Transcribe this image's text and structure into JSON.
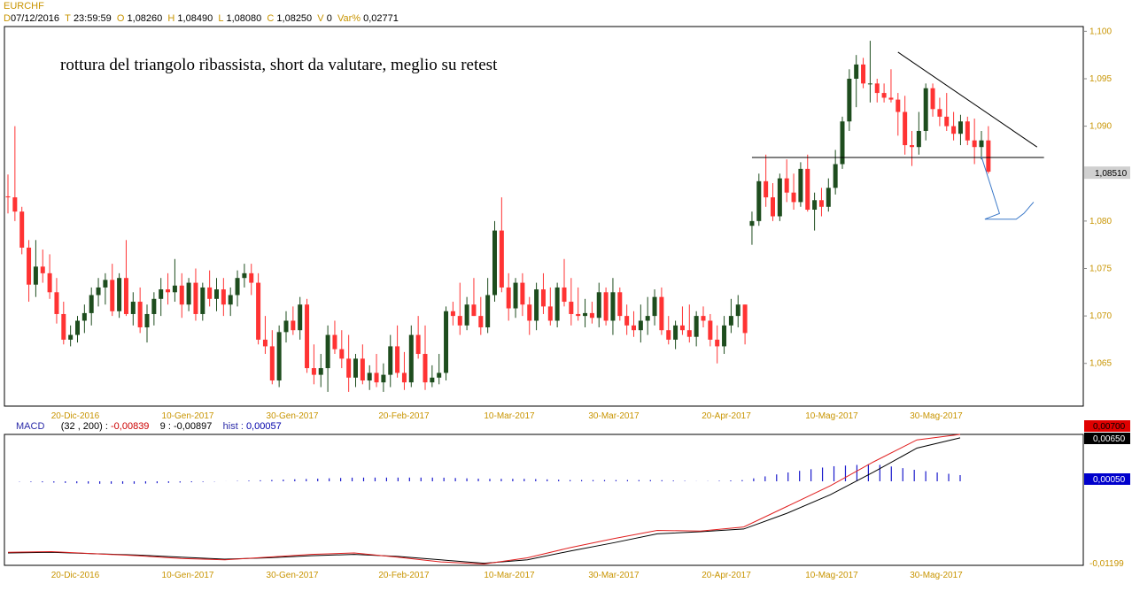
{
  "header": {
    "symbol": "EURCHF",
    "date_key": "D",
    "date_val": "07/12/2016",
    "time_key": "T",
    "time_val": "23:59:59",
    "open_key": "O",
    "open_val": "1,08260",
    "high_key": "H",
    "high_val": "1,08490",
    "low_key": "L",
    "low_val": "1,08080",
    "close_key": "C",
    "close_val": "1,08250",
    "volume_key": "V",
    "volume_val": "0",
    "var_key": "Var%",
    "var_val": "0,02771"
  },
  "annotation": "rottura del triangolo ribassista, short da valutare, meglio su retest",
  "macd_header": {
    "label": "MACD",
    "params": "(32 , 200) :",
    "macd_val": "-0,00839",
    "signal_label": "9 :",
    "signal_val": "-0,00897",
    "hist_label": "hist :",
    "hist_val": "0,00057"
  },
  "colors": {
    "up": "#1e4d1e",
    "down": "#ff3333",
    "axis_text": "#c89400",
    "macd_line": "#e02020",
    "signal_line": "#000000",
    "hist": "#1a1acc",
    "arrow": "#3a78c8"
  },
  "chart_data": [
    {
      "type": "candlestick",
      "title": "EURCHF",
      "x_labels": [
        "20-Dic-2016",
        "10-Gen-2017",
        "30-Gen-2017",
        "20-Feb-2017",
        "10-Mar-2017",
        "30-Mar-2017",
        "20-Apr-2017",
        "10-Mag-2017",
        "30-Mag-2017"
      ],
      "y_ticks": [
        "1,100",
        "1,095",
        "1,090",
        "1,085",
        "1,080",
        "1,075",
        "1,070",
        "1,065"
      ],
      "ylim": [
        1.0605,
        1.1005
      ],
      "last_price_label": "1,08510",
      "last_price": 1.0851,
      "ohlc": [
        [
          1.0826,
          1.0849,
          1.0808,
          1.0825
        ],
        [
          1.0825,
          1.09,
          1.08,
          1.081
        ],
        [
          1.081,
          1.0815,
          1.0765,
          1.0772
        ],
        [
          1.0772,
          1.078,
          1.0715,
          1.0733
        ],
        [
          1.0733,
          1.078,
          1.072,
          1.0752
        ],
        [
          1.0752,
          1.077,
          1.0735,
          1.0745
        ],
        [
          1.0745,
          1.0765,
          1.0718,
          1.0725
        ],
        [
          1.0725,
          1.074,
          1.0692,
          1.0702
        ],
        [
          1.0702,
          1.0715,
          1.067,
          1.0675
        ],
        [
          1.0675,
          1.069,
          1.0668,
          1.068
        ],
        [
          1.068,
          1.07,
          1.0672,
          1.0695
        ],
        [
          1.0695,
          1.0712,
          1.0682,
          1.0703
        ],
        [
          1.0703,
          1.073,
          1.069,
          1.0722
        ],
        [
          1.0722,
          1.074,
          1.071,
          1.073
        ],
        [
          1.073,
          1.0745,
          1.0712,
          1.0738
        ],
        [
          1.0738,
          1.0755,
          1.07,
          1.0705
        ],
        [
          1.0705,
          1.0745,
          1.0698,
          1.074
        ],
        [
          1.074,
          1.078,
          1.07,
          1.0702
        ],
        [
          1.0702,
          1.0725,
          1.069,
          1.0715
        ],
        [
          1.0715,
          1.073,
          1.0682,
          1.0688
        ],
        [
          1.0688,
          1.0712,
          1.0672,
          1.0702
        ],
        [
          1.0702,
          1.0725,
          1.069,
          1.0718
        ],
        [
          1.0718,
          1.074,
          1.07,
          1.0728
        ],
        [
          1.0728,
          1.0745,
          1.0712,
          1.0725
        ],
        [
          1.0725,
          1.076,
          1.0715,
          1.0732
        ],
        [
          1.0732,
          1.0745,
          1.0698,
          1.0712
        ],
        [
          1.0712,
          1.074,
          1.0705,
          1.0735
        ],
        [
          1.0735,
          1.075,
          1.0695,
          1.0702
        ],
        [
          1.0702,
          1.0735,
          1.0695,
          1.073
        ],
        [
          1.073,
          1.0748,
          1.071,
          1.0718
        ],
        [
          1.0718,
          1.074,
          1.0705,
          1.0728
        ],
        [
          1.0728,
          1.074,
          1.07,
          1.0712
        ],
        [
          1.0712,
          1.073,
          1.07,
          1.0722
        ],
        [
          1.0722,
          1.0748,
          1.071,
          1.074
        ],
        [
          1.074,
          1.0755,
          1.073,
          1.0745
        ],
        [
          1.0745,
          1.0755,
          1.0722,
          1.0735
        ],
        [
          1.0735,
          1.0745,
          1.067,
          1.0675
        ],
        [
          1.0675,
          1.07,
          1.066,
          1.0668
        ],
        [
          1.0668,
          1.0685,
          1.0628,
          1.0632
        ],
        [
          1.0632,
          1.069,
          1.0625,
          1.0683
        ],
        [
          1.0683,
          1.0705,
          1.0672,
          1.0695
        ],
        [
          1.0695,
          1.071,
          1.068,
          1.0685
        ],
        [
          1.0685,
          1.072,
          1.0675,
          1.0712
        ],
        [
          1.0712,
          1.0718,
          1.064,
          1.0645
        ],
        [
          1.0645,
          1.067,
          1.0628,
          1.0638
        ],
        [
          1.0638,
          1.066,
          1.0625,
          1.0645
        ],
        [
          1.0645,
          1.069,
          1.062,
          1.068
        ],
        [
          1.068,
          1.0695,
          1.066,
          1.0665
        ],
        [
          1.0665,
          1.0685,
          1.0645,
          1.0655
        ],
        [
          1.0655,
          1.068,
          1.062,
          1.0635
        ],
        [
          1.0635,
          1.066,
          1.0625,
          1.0655
        ],
        [
          1.0655,
          1.067,
          1.0628,
          1.0632
        ],
        [
          1.0632,
          1.0648,
          1.0622,
          1.064
        ],
        [
          1.064,
          1.066,
          1.0625,
          1.063
        ],
        [
          1.063,
          1.065,
          1.062,
          1.0638
        ],
        [
          1.0638,
          1.068,
          1.0625,
          1.0668
        ],
        [
          1.0668,
          1.069,
          1.0635,
          1.064
        ],
        [
          1.064,
          1.0662,
          1.0622,
          1.063
        ],
        [
          1.063,
          1.069,
          1.0625,
          1.068
        ],
        [
          1.068,
          1.07,
          1.0655,
          1.066
        ],
        [
          1.066,
          1.069,
          1.0622,
          1.063
        ],
        [
          1.063,
          1.0648,
          1.0625,
          1.0635
        ],
        [
          1.0635,
          1.066,
          1.0628,
          1.064
        ],
        [
          1.064,
          1.071,
          1.0632,
          1.0705
        ],
        [
          1.0705,
          1.0715,
          1.069,
          1.07
        ],
        [
          1.07,
          1.0735,
          1.068,
          1.069
        ],
        [
          1.069,
          1.072,
          1.0685,
          1.0712
        ],
        [
          1.0712,
          1.074,
          1.07,
          1.07
        ],
        [
          1.07,
          1.072,
          1.068,
          1.0688
        ],
        [
          1.0688,
          1.074,
          1.0682,
          1.0722
        ],
        [
          1.0722,
          1.08,
          1.0715,
          1.079
        ],
        [
          1.079,
          1.0825,
          1.0725,
          1.073
        ],
        [
          1.073,
          1.0745,
          1.0695,
          1.0708
        ],
        [
          1.0708,
          1.074,
          1.0698,
          1.0735
        ],
        [
          1.0735,
          1.0745,
          1.07,
          1.0712
        ],
        [
          1.0712,
          1.072,
          1.068,
          1.0695
        ],
        [
          1.0695,
          1.0735,
          1.0685,
          1.0728
        ],
        [
          1.0728,
          1.0745,
          1.0702,
          1.071
        ],
        [
          1.071,
          1.073,
          1.069,
          1.0695
        ],
        [
          1.0695,
          1.0735,
          1.0688,
          1.073
        ],
        [
          1.073,
          1.076,
          1.071,
          1.0715
        ],
        [
          1.0715,
          1.074,
          1.069,
          1.0702
        ],
        [
          1.0702,
          1.073,
          1.0695,
          1.07
        ],
        [
          1.07,
          1.0718,
          1.0688,
          1.0703
        ],
        [
          1.0703,
          1.0715,
          1.0692,
          1.0698
        ],
        [
          1.0698,
          1.0735,
          1.0688,
          1.0725
        ],
        [
          1.0725,
          1.073,
          1.069,
          1.0695
        ],
        [
          1.0695,
          1.074,
          1.068,
          1.0725
        ],
        [
          1.0725,
          1.073,
          1.0695,
          1.07
        ],
        [
          1.07,
          1.0712,
          1.068,
          1.069
        ],
        [
          1.069,
          1.0705,
          1.0678,
          1.0685
        ],
        [
          1.0685,
          1.0712,
          1.0672,
          1.0695
        ],
        [
          1.0695,
          1.072,
          1.068,
          1.07
        ],
        [
          1.07,
          1.0728,
          1.069,
          1.072
        ],
        [
          1.072,
          1.073,
          1.068,
          1.0685
        ],
        [
          1.0685,
          1.07,
          1.067,
          1.0675
        ],
        [
          1.0675,
          1.0695,
          1.0665,
          1.069
        ],
        [
          1.069,
          1.071,
          1.068,
          1.0685
        ],
        [
          1.0685,
          1.0712,
          1.0672,
          1.0678
        ],
        [
          1.0678,
          1.0705,
          1.0668,
          1.07
        ],
        [
          1.07,
          1.071,
          1.0688,
          1.0695
        ],
        [
          1.0695,
          1.0702,
          1.0668,
          1.0675
        ],
        [
          1.0675,
          1.069,
          1.065,
          1.0668
        ],
        [
          1.0668,
          1.07,
          1.066,
          1.069
        ],
        [
          1.069,
          1.0718,
          1.0682,
          1.07
        ],
        [
          1.07,
          1.0722,
          1.0688,
          1.0712
        ],
        [
          1.0712,
          1.0712,
          1.067,
          1.0682
        ],
        [
          1.0795,
          1.081,
          1.0775,
          1.08
        ],
        [
          1.08,
          1.085,
          1.0795,
          1.0842
        ],
        [
          1.0842,
          1.087,
          1.0815,
          1.0825
        ],
        [
          1.0825,
          1.084,
          1.08,
          1.0805
        ],
        [
          1.0805,
          1.085,
          1.08,
          1.0845
        ],
        [
          1.0845,
          1.0865,
          1.082,
          1.083
        ],
        [
          1.083,
          1.085,
          1.0812,
          1.082
        ],
        [
          1.082,
          1.0862,
          1.0815,
          1.0855
        ],
        [
          1.0855,
          1.087,
          1.081,
          1.0812
        ],
        [
          1.0812,
          1.083,
          1.079,
          1.0822
        ],
        [
          1.0822,
          1.0835,
          1.0805,
          1.0815
        ],
        [
          1.0815,
          1.0845,
          1.081,
          1.0835
        ],
        [
          1.0835,
          1.0875,
          1.0828,
          1.086
        ],
        [
          1.086,
          1.091,
          1.0855,
          1.0905
        ],
        [
          1.0905,
          1.096,
          1.0895,
          1.095
        ],
        [
          1.095,
          1.0975,
          1.092,
          1.0965
        ],
        [
          1.0965,
          1.0972,
          1.094,
          1.0945
        ],
        [
          1.0945,
          1.099,
          1.0925,
          1.0945
        ],
        [
          1.0945,
          1.095,
          1.0925,
          1.0935
        ],
        [
          1.0935,
          1.0945,
          1.0925,
          1.093
        ],
        [
          1.093,
          1.096,
          1.0925,
          1.0928
        ],
        [
          1.0928,
          1.0935,
          1.089,
          1.0915
        ],
        [
          1.0915,
          1.0932,
          1.087,
          1.088
        ],
        [
          1.088,
          1.0895,
          1.0858,
          1.0878
        ],
        [
          1.0878,
          1.0915,
          1.087,
          1.0895
        ],
        [
          1.0895,
          1.0945,
          1.0885,
          1.094
        ],
        [
          1.094,
          1.0945,
          1.091,
          1.0918
        ],
        [
          1.0918,
          1.093,
          1.09,
          1.091
        ],
        [
          1.091,
          1.0935,
          1.0895,
          1.09
        ],
        [
          1.09,
          1.0915,
          1.0885,
          1.0892
        ],
        [
          1.0892,
          1.0912,
          1.088,
          1.0905
        ],
        [
          1.0905,
          1.091,
          1.088,
          1.0885
        ],
        [
          1.0885,
          1.0908,
          1.086,
          1.0878
        ],
        [
          1.0878,
          1.0895,
          1.0865,
          1.0885
        ],
        [
          1.0885,
          1.09,
          1.085,
          1.0852
        ]
      ],
      "lines": [
        {
          "name": "",
          "kind": "trendline",
          "x0": 128,
          "y0": 1.0978,
          "x1": 148,
          "y1": 1.0878
        },
        {
          "name": "",
          "kind": "support",
          "x0": 107,
          "y0": 1.0867,
          "x1": 149,
          "y1": 1.0867
        }
      ],
      "forecast_arrow": [
        [
          140,
          1.0868
        ],
        [
          142.6,
          1.0808
        ],
        [
          140.5,
          1.0802
        ],
        [
          145,
          1.0802
        ],
        [
          146.1,
          1.0808
        ],
        [
          147.5,
          1.082
        ]
      ]
    },
    {
      "type": "macd",
      "series": [
        {
          "name": "MACD",
          "values": [
            -0.0102,
            -0.0101,
            -0.0104,
            -0.0107,
            -0.0111,
            -0.0113,
            -0.0109,
            -0.0105,
            -0.0103,
            -0.0109,
            -0.0116,
            -0.0119,
            -0.011,
            -0.0095,
            -0.0082,
            -0.007,
            -0.0071,
            -0.0065,
            -0.0035,
            -0.0005,
            0.003,
            0.0062,
            0.007
          ]
        },
        {
          "name": "signal",
          "values": [
            -0.0103,
            -0.0102,
            -0.0104,
            -0.0106,
            -0.0109,
            -0.0112,
            -0.011,
            -0.0107,
            -0.0105,
            -0.0108,
            -0.0113,
            -0.0118,
            -0.0113,
            -0.01,
            -0.0088,
            -0.0075,
            -0.0072,
            -0.0068,
            -0.0045,
            -0.0018,
            0.0015,
            0.005,
            0.0065
          ]
        },
        {
          "name": "hist",
          "values": [
            0.0,
            -0.0001,
            -0.0002,
            -0.0002,
            -0.0001,
            0.0,
            0.0001,
            0.0002,
            0.0003,
            0.0003,
            0.0003,
            0.0002,
            0.0002,
            0.0001,
            0.0001,
            0.0001,
            0.0,
            0.0001,
            0.0007,
            0.0012,
            0.0014,
            0.0009,
            0.0005
          ]
        }
      ],
      "y_labels": [
        "0,00700",
        "0,00650",
        "0,00050",
        "-0,01199"
      ],
      "ylim": [
        -0.0121,
        0.007
      ],
      "x_labels": [
        "20-Dic-2016",
        "10-Gen-2017",
        "30-Gen-2017",
        "20-Feb-2017",
        "10-Mar-2017",
        "30-Mar-2017",
        "20-Apr-2017",
        "10-Mag-2017",
        "30-Mag-2017"
      ]
    }
  ]
}
